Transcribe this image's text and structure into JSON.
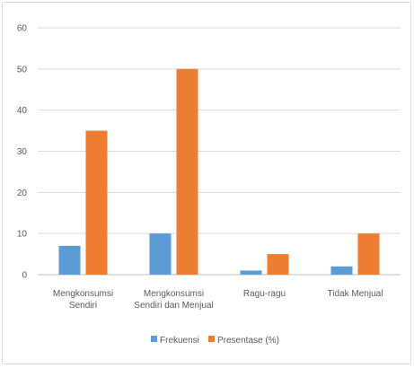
{
  "chart_data": {
    "type": "bar",
    "categories": [
      [
        "Mengkonsumsi",
        "Sendiri"
      ],
      [
        "Mengkonsumsi",
        "Sendiri dan Menjual"
      ],
      [
        "Ragu-ragu"
      ],
      [
        "Tidak Menjual"
      ]
    ],
    "series": [
      {
        "name": "Frekuensi",
        "color": "#5b9bd5",
        "values": [
          7,
          10,
          1,
          2
        ]
      },
      {
        "name": "Presentase (%)",
        "color": "#ed7d31",
        "values": [
          35,
          50,
          5,
          10
        ]
      }
    ],
    "ylim": [
      0,
      60
    ],
    "yticks": [
      0,
      10,
      20,
      30,
      40,
      50,
      60
    ],
    "grid": true,
    "legend_position": "bottom"
  }
}
